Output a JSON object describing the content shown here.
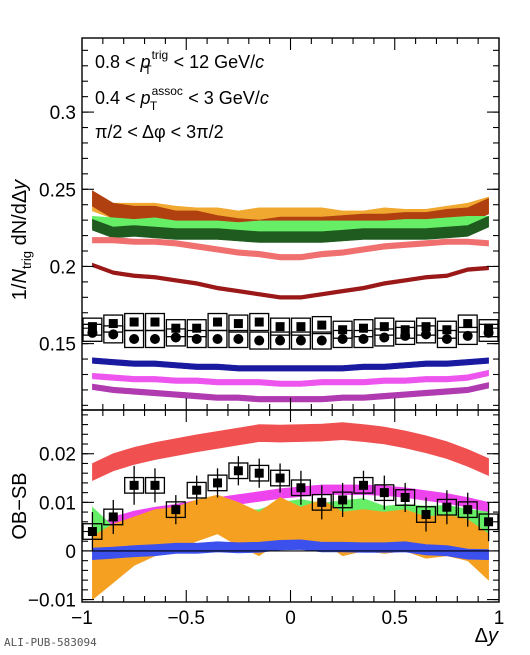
{
  "footer": "ALI-PUB-583094",
  "chart_data": [
    {
      "type": "line",
      "panel": "top",
      "ylabel": "1/N_trig dN/dΔy",
      "ylabel_parts": {
        "pre": "1/",
        "N": "N",
        "trig": "trig",
        "post": " dN/dΔ",
        "y": "y"
      },
      "annotations": [
        {
          "pre": "0.8 < ",
          "sym": "p",
          "sup": "trig",
          "sub": "T",
          "post": " < 12 GeV/",
          "unit": "c"
        },
        {
          "pre": "0.4 < ",
          "sym": "p",
          "sup": "assoc",
          "sub": "T",
          "post": " < 3 GeV/",
          "unit": "c"
        },
        {
          "text": "π/2 < Δφ < 3π/2"
        }
      ],
      "xlim": [
        -1,
        1
      ],
      "ylim": [
        0.107,
        0.348
      ],
      "y_ticks": [
        0.15,
        0.2,
        0.25,
        0.3
      ],
      "y_tick_labels": [
        "0.15",
        "0.2",
        "0.25",
        "0.3"
      ],
      "x": [
        -0.95,
        -0.85,
        -0.75,
        -0.65,
        -0.55,
        -0.45,
        -0.35,
        -0.25,
        -0.15,
        -0.05,
        0.05,
        0.15,
        0.25,
        0.35,
        0.45,
        0.55,
        0.65,
        0.75,
        0.85,
        0.95
      ],
      "bands": [
        {
          "color": "#f0a830",
          "width": 0.005,
          "values": [
            0.241,
            0.236,
            0.236,
            0.236,
            0.234,
            0.233,
            0.233,
            0.231,
            0.233,
            0.233,
            0.233,
            0.233,
            0.231,
            0.231,
            0.233,
            0.232,
            0.232,
            0.234,
            0.236,
            0.24
          ]
        },
        {
          "color": "#b04010",
          "width": 0.005,
          "values": [
            0.244,
            0.236,
            0.234,
            0.234,
            0.231,
            0.231,
            0.228,
            0.226,
            0.225,
            0.227,
            0.227,
            0.227,
            0.228,
            0.229,
            0.229,
            0.23,
            0.23,
            0.232,
            0.233,
            0.239
          ]
        },
        {
          "color": "#66ee66",
          "width": 0.0035,
          "values": [
            0.229,
            0.228,
            0.227,
            0.228,
            0.226,
            0.226,
            0.226,
            0.225,
            0.226,
            0.226,
            0.226,
            0.226,
            0.226,
            0.226,
            0.226,
            0.227,
            0.227,
            0.228,
            0.229,
            0.229
          ]
        },
        {
          "color": "#1f5a1f",
          "width": 0.0035,
          "values": [
            0.227,
            0.222,
            0.223,
            0.222,
            0.221,
            0.221,
            0.221,
            0.22,
            0.219,
            0.219,
            0.219,
            0.219,
            0.22,
            0.221,
            0.221,
            0.221,
            0.221,
            0.222,
            0.223,
            0.229
          ]
        },
        {
          "color": "#f07070",
          "width": 0.0018,
          "values": [
            0.217,
            0.217,
            0.216,
            0.216,
            0.215,
            0.213,
            0.211,
            0.209,
            0.208,
            0.206,
            0.206,
            0.208,
            0.209,
            0.211,
            0.213,
            0.214,
            0.215,
            0.216,
            0.216,
            0.215
          ]
        },
        {
          "color": "#9a1818",
          "width": 0.0012,
          "values": [
            0.201,
            0.196,
            0.194,
            0.193,
            0.191,
            0.189,
            0.186,
            0.184,
            0.182,
            0.18,
            0.18,
            0.182,
            0.184,
            0.186,
            0.189,
            0.191,
            0.193,
            0.194,
            0.198,
            0.199
          ]
        },
        {
          "color": "#1a1aa0",
          "width": 0.0018,
          "values": [
            0.139,
            0.138,
            0.137,
            0.137,
            0.136,
            0.135,
            0.135,
            0.134,
            0.134,
            0.134,
            0.134,
            0.134,
            0.134,
            0.135,
            0.135,
            0.136,
            0.137,
            0.137,
            0.138,
            0.139
          ]
        },
        {
          "color": "#ee55ee",
          "width": 0.0018,
          "values": [
            0.129,
            0.128,
            0.127,
            0.127,
            0.126,
            0.126,
            0.125,
            0.125,
            0.125,
            0.124,
            0.124,
            0.125,
            0.125,
            0.125,
            0.126,
            0.126,
            0.127,
            0.127,
            0.128,
            0.131
          ]
        },
        {
          "color": "#b03ab0",
          "width": 0.0018,
          "values": [
            0.122,
            0.12,
            0.119,
            0.118,
            0.117,
            0.116,
            0.115,
            0.115,
            0.114,
            0.114,
            0.114,
            0.114,
            0.115,
            0.115,
            0.116,
            0.117,
            0.118,
            0.119,
            0.12,
            0.123
          ]
        }
      ],
      "points": [
        {
          "marker": "square",
          "values": [
            0.161,
            0.163,
            0.164,
            0.164,
            0.16,
            0.16,
            0.164,
            0.163,
            0.164,
            0.161,
            0.161,
            0.162,
            0.159,
            0.16,
            0.161,
            0.159,
            0.161,
            0.159,
            0.163,
            0.16
          ],
          "syst": 0.0055
        },
        {
          "marker": "circle",
          "values": [
            0.157,
            0.156,
            0.153,
            0.153,
            0.154,
            0.153,
            0.153,
            0.153,
            0.152,
            0.152,
            0.152,
            0.152,
            0.153,
            0.153,
            0.154,
            0.155,
            0.156,
            0.153,
            0.155,
            0.157
          ],
          "syst": 0.0055
        }
      ]
    },
    {
      "type": "line",
      "panel": "bottom",
      "ylabel": "OB−SB",
      "xlabel": "Δy",
      "xlabel_parts": {
        "delta": "Δ",
        "y": "y"
      },
      "xlim": [
        -1,
        1
      ],
      "ylim": [
        -0.0105,
        0.029
      ],
      "x_ticks": [
        -1,
        -0.5,
        0,
        0.5,
        1
      ],
      "x_tick_labels": [
        "−1",
        "−0.5",
        "0",
        "0.5",
        "1"
      ],
      "y_ticks": [
        -0.01,
        0,
        0.01,
        0.02
      ],
      "y_tick_labels": [
        "−0.01",
        "0",
        "0.01",
        "0.02"
      ],
      "x": [
        -0.95,
        -0.85,
        -0.75,
        -0.65,
        -0.55,
        -0.45,
        -0.35,
        -0.25,
        -0.15,
        -0.05,
        0.05,
        0.15,
        0.25,
        0.35,
        0.45,
        0.55,
        0.65,
        0.75,
        0.85,
        0.95
      ],
      "bands": [
        {
          "color": "#f05050",
          "lower": [
            0.0145,
            0.0165,
            0.0178,
            0.0188,
            0.0196,
            0.0204,
            0.0211,
            0.0218,
            0.0225,
            0.0224,
            0.0225,
            0.0226,
            0.0229,
            0.0225,
            0.022,
            0.0212,
            0.0202,
            0.019,
            0.0174,
            0.0155
          ],
          "upper": [
            0.018,
            0.02,
            0.0213,
            0.0223,
            0.0231,
            0.0239,
            0.0246,
            0.0253,
            0.026,
            0.0259,
            0.026,
            0.0261,
            0.0264,
            0.026,
            0.0255,
            0.0247,
            0.0237,
            0.0225,
            0.0209,
            0.019
          ]
        },
        {
          "color": "#ee44ee",
          "lower": [
            0.0025,
            0.005,
            0.0062,
            0.007,
            0.0076,
            0.0084,
            0.009,
            0.0096,
            0.0102,
            0.0108,
            0.0112,
            0.0116,
            0.0116,
            0.0116,
            0.0114,
            0.011,
            0.0104,
            0.0098,
            0.009,
            0.008
          ],
          "upper": [
            0.0045,
            0.007,
            0.0082,
            0.009,
            0.0096,
            0.0104,
            0.011,
            0.0116,
            0.0122,
            0.0128,
            0.0132,
            0.0136,
            0.0136,
            0.0136,
            0.0134,
            0.013,
            0.0124,
            0.0118,
            0.011,
            0.01
          ]
        },
        {
          "color": "#66ee66",
          "lower": [
            0.0045,
            0.0005,
            0.0022,
            0.003,
            0.0022,
            0.0038,
            0.0042,
            0.0035,
            0.004,
            0.0055,
            0.0058,
            0.005,
            0.0056,
            0.006,
            0.0045,
            0.005,
            0.0045,
            0.0048,
            0.004,
            0.0035
          ],
          "upper": [
            0.009,
            0.005,
            0.0068,
            0.008,
            0.0068,
            0.0085,
            0.009,
            0.0082,
            0.0085,
            0.01,
            0.0106,
            0.0098,
            0.0104,
            0.0108,
            0.0092,
            0.0096,
            0.0092,
            0.0094,
            0.0086,
            0.008
          ]
        },
        {
          "color": "#f5a020",
          "lower": [
            -0.01,
            -0.0065,
            -0.003,
            -0.001,
            0.0,
            0.002,
            0.0035,
            0.001,
            -0.001,
            0.002,
            0.0005,
            0.002,
            -0.001,
            0.0,
            -0.0005,
            0.0,
            -0.0015,
            -0.001,
            -0.002,
            -0.006
          ],
          "upper": [
            0.003,
            0.0055,
            0.007,
            0.0085,
            0.009,
            0.0105,
            0.0115,
            0.01,
            0.008,
            0.011,
            0.009,
            0.0105,
            0.008,
            0.0085,
            0.008,
            0.0085,
            0.007,
            0.0075,
            0.0065,
            0.0035
          ]
        },
        {
          "color": "#3c50ee",
          "lower": [
            -0.0018,
            -0.0015,
            -0.0012,
            -0.001,
            -0.0005,
            -0.0005,
            -0.0002,
            -0.0004,
            -0.0003,
            0.0002,
            0.0003,
            -0.0002,
            -0.0002,
            -0.0003,
            -0.0003,
            -0.0002,
            -0.0008,
            -0.001,
            -0.0017,
            -0.0018
          ],
          "upper": [
            0.0006,
            0.0008,
            0.0011,
            0.0013,
            0.0016,
            0.0016,
            0.0019,
            0.0017,
            0.0018,
            0.0022,
            0.0023,
            0.0018,
            0.0018,
            0.0017,
            0.0017,
            0.0019,
            0.0013,
            0.0011,
            0.0004,
            0.0003
          ]
        }
      ],
      "points": [
        {
          "marker": "square",
          "values": [
            0.004,
            0.007,
            0.0135,
            0.0135,
            0.0085,
            0.0125,
            0.014,
            0.0165,
            0.016,
            0.015,
            0.013,
            0.01,
            0.0105,
            0.0135,
            0.012,
            0.011,
            0.0075,
            0.009,
            0.0085,
            0.006
          ],
          "err": [
            0.004,
            0.0035,
            0.004,
            0.0035,
            0.003,
            0.003,
            0.003,
            0.003,
            0.003,
            0.003,
            0.0035,
            0.0035,
            0.0035,
            0.003,
            0.0035,
            0.003,
            0.0035,
            0.0035,
            0.0035,
            0.004
          ],
          "syst": 0.0016
        }
      ]
    }
  ]
}
